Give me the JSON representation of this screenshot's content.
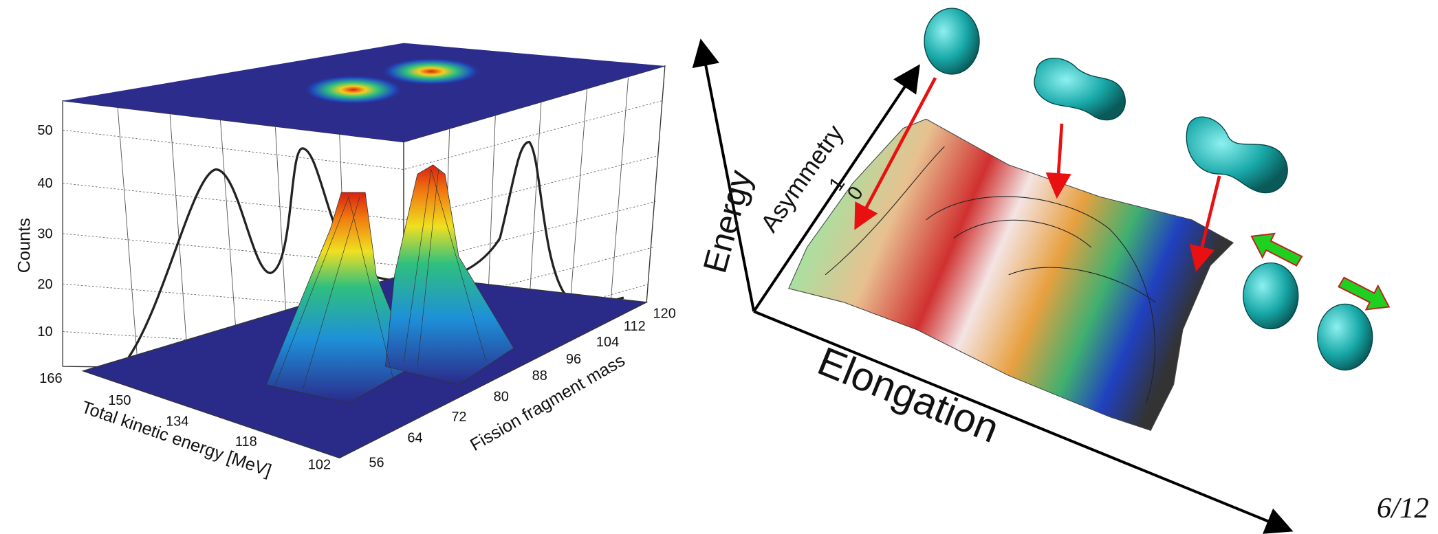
{
  "left_plot": {
    "y_axis_label": "Counts",
    "y_ticks": [
      "50",
      "40",
      "30",
      "20",
      "10"
    ],
    "x_axis_label": "Total kinetic energy [MeV]",
    "x_ticks": [
      "166",
      "150",
      "134",
      "118",
      "102"
    ],
    "z_axis_label": "Fission fragment mass",
    "z_ticks": [
      "56",
      "64",
      "72",
      "80",
      "88",
      "96",
      "104",
      "112",
      "120"
    ]
  },
  "right_diagram": {
    "energy_label": "Energy",
    "asymmetry_label": "Asymmetry",
    "asymmetry_ticks": [
      "0",
      "1"
    ],
    "elongation_label": "Elongation"
  },
  "page_number": "6/12"
}
